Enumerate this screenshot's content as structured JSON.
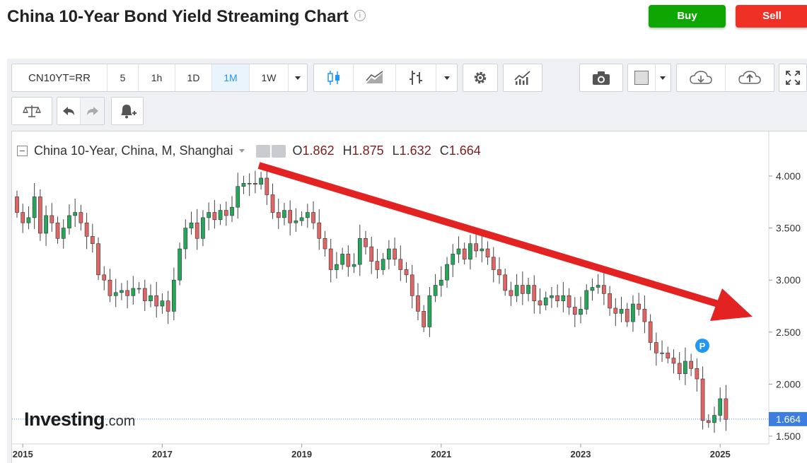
{
  "header": {
    "title": "China 10-Year Bond Yield Streaming Chart",
    "info_glyph": "i",
    "buy_label": "Buy",
    "sell_label": "Sell"
  },
  "toolbar": {
    "symbol": "CN10YT=RR",
    "intervals": [
      "5",
      "1h",
      "1D",
      "1M",
      "1W"
    ],
    "active_interval": "1M"
  },
  "legend": {
    "name": "China 10-Year, China, M, Shanghai",
    "open_label": "O",
    "open": "1.862",
    "high_label": "H",
    "high": "1.875",
    "low_label": "L",
    "low": "1.632",
    "close_label": "C",
    "close": "1.664"
  },
  "watermark": {
    "brand": "Investing",
    "suffix": ".com"
  },
  "marker_label": "P",
  "colors": {
    "up": "#26a65b",
    "down": "#e06666",
    "arrow": "#e32222",
    "price_tag": "#3b7de0"
  },
  "chart_data": {
    "type": "candlestick",
    "title": "China 10-Year, China, M, Shanghai",
    "y_ticks": [
      "4.000",
      "3.500",
      "3.000",
      "2.500",
      "2.000",
      "1.500"
    ],
    "ylim": [
      1.4,
      4.45
    ],
    "x_ticks": [
      "2015",
      "2017",
      "2019",
      "2021",
      "2023",
      "2025"
    ],
    "last_price": "1.664",
    "months": 123,
    "first_month": 0,
    "closes": [
      3.65,
      3.55,
      3.6,
      3.8,
      3.45,
      3.62,
      3.55,
      3.4,
      3.5,
      3.62,
      3.65,
      3.55,
      3.42,
      3.35,
      3.05,
      3.0,
      2.85,
      2.88,
      2.9,
      2.85,
      2.92,
      2.92,
      2.8,
      2.85,
      2.75,
      2.8,
      2.7,
      3.0,
      3.3,
      3.5,
      3.55,
      3.4,
      3.6,
      3.65,
      3.58,
      3.67,
      3.62,
      3.7,
      3.9,
      3.93,
      3.93,
      3.92,
      3.98,
      3.82,
      3.65,
      3.6,
      3.67,
      3.55,
      3.57,
      3.6,
      3.65,
      3.55,
      3.4,
      3.3,
      3.1,
      3.15,
      3.25,
      3.13,
      3.15,
      3.4,
      3.32,
      3.18,
      3.1,
      3.2,
      3.3,
      3.2,
      3.1,
      3.05,
      2.85,
      2.7,
      2.55,
      2.85,
      2.95,
      3.0,
      3.15,
      3.25,
      3.3,
      3.2,
      3.35,
      3.28,
      3.3,
      3.22,
      3.1,
      3.05,
      2.9,
      2.85,
      2.95,
      2.87,
      2.95,
      2.8,
      2.76,
      2.83,
      2.85,
      2.8,
      2.85,
      2.74,
      2.67,
      2.72,
      2.9,
      2.93,
      2.95,
      2.87,
      2.73,
      2.68,
      2.72,
      2.6,
      2.77,
      2.72,
      2.6,
      2.4,
      2.3,
      2.3,
      2.25,
      2.2,
      2.1,
      2.22,
      2.15,
      2.05,
      1.65,
      1.63,
      1.7,
      1.86,
      1.66
    ]
  }
}
